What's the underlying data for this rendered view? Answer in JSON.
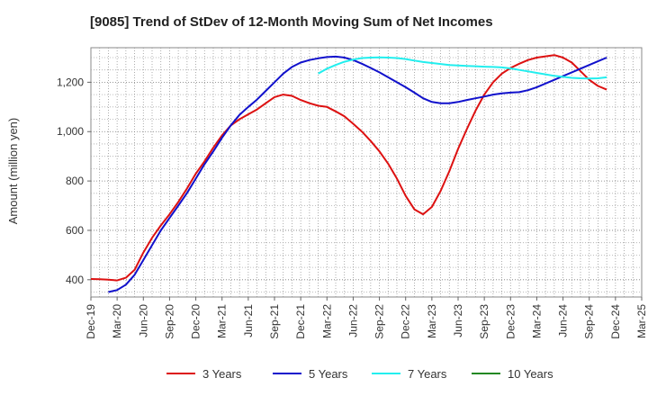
{
  "chart_data": {
    "type": "line",
    "title": "[9085]  Trend of StDev of 12-Month Moving Sum of Net Incomes",
    "xlabel": "",
    "ylabel": "Amount (million yen)",
    "ylim": [
      330,
      1340
    ],
    "yticks": [
      400,
      600,
      800,
      1000,
      1200
    ],
    "ytick_labels": [
      "400",
      "600",
      "800",
      "1,000",
      "1,200"
    ],
    "xticks": [
      "Dec-19",
      "Mar-20",
      "Jun-20",
      "Sep-20",
      "Dec-20",
      "Mar-21",
      "Jun-21",
      "Sep-21",
      "Dec-21",
      "Mar-22",
      "Jun-22",
      "Sep-22",
      "Dec-22",
      "Mar-23",
      "Jun-23",
      "Sep-23",
      "Dec-23",
      "Mar-24",
      "Jun-24",
      "Sep-24",
      "Dec-24",
      "Mar-25"
    ],
    "grid": true,
    "legend_position": "bottom",
    "series": [
      {
        "name": "3 Years",
        "color": "#dd1111",
        "values": [
          403,
          402,
          400,
          397,
          408,
          440,
          510,
          570,
          620,
          665,
          715,
          770,
          830,
          880,
          935,
          985,
          1025,
          1050,
          1070,
          1090,
          1115,
          1140,
          1150,
          1145,
          1128,
          1115,
          1105,
          1100,
          1082,
          1062,
          1032,
          1000,
          962,
          920,
          870,
          810,
          740,
          685,
          665,
          695,
          760,
          840,
          930,
          1010,
          1085,
          1150,
          1200,
          1235,
          1258,
          1275,
          1290,
          1300,
          1305,
          1310,
          1300,
          1280,
          1245,
          1210,
          1185,
          1170
        ]
      },
      {
        "name": "5 Years",
        "color": "#1111cc",
        "values": [
          null,
          null,
          350,
          358,
          380,
          420,
          480,
          540,
          600,
          650,
          700,
          752,
          810,
          868,
          920,
          975,
          1025,
          1068,
          1100,
          1130,
          1165,
          1200,
          1235,
          1262,
          1280,
          1290,
          1297,
          1302,
          1304,
          1300,
          1290,
          1275,
          1258,
          1240,
          1220,
          1200,
          1180,
          1158,
          1135,
          1120,
          1115,
          1115,
          1120,
          1128,
          1135,
          1142,
          1150,
          1155,
          1158,
          1160,
          1168,
          1180,
          1195,
          1210,
          1225,
          1240,
          1255,
          1270,
          1285,
          1300
        ]
      },
      {
        "name": "7 Years",
        "color": "#22eeee",
        "values": [
          null,
          null,
          null,
          null,
          null,
          null,
          null,
          null,
          null,
          null,
          null,
          null,
          null,
          null,
          null,
          null,
          null,
          null,
          null,
          null,
          null,
          null,
          null,
          null,
          null,
          null,
          1235,
          1255,
          1270,
          1283,
          1292,
          1298,
          1300,
          1301,
          1300,
          1298,
          1294,
          1288,
          1282,
          1278,
          1274,
          1270,
          1268,
          1266,
          1265,
          1263,
          1262,
          1260,
          1256,
          1250,
          1244,
          1238,
          1232,
          1226,
          1222,
          1218,
          1216,
          1215,
          1216,
          1220
        ]
      },
      {
        "name": "10 Years",
        "color": "#228822",
        "values": []
      }
    ]
  }
}
